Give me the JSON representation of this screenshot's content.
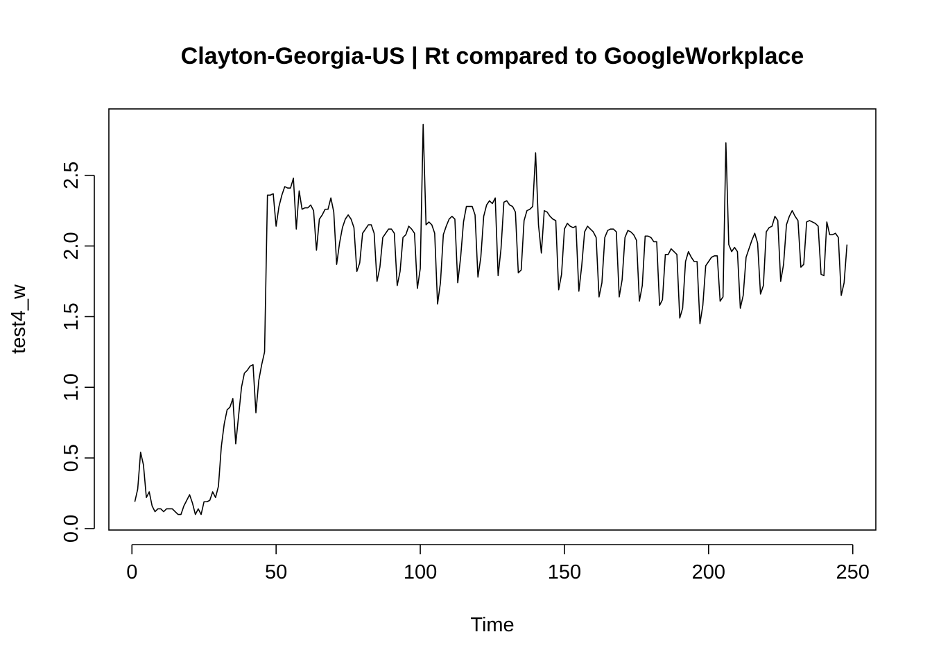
{
  "chart_data": {
    "type": "line",
    "title": "Clayton-Georgia-US | Rt compared to GoogleWorkplace",
    "xlabel": "Time",
    "ylabel": "test4_w",
    "xlim": [
      -8,
      258
    ],
    "ylim": [
      -0.01,
      2.97
    ],
    "x_ticks": [
      0,
      50,
      100,
      150,
      200,
      250
    ],
    "y_ticks": [
      0.0,
      0.5,
      1.0,
      1.5,
      2.0,
      2.5
    ],
    "x_tick_labels": [
      "0",
      "50",
      "100",
      "150",
      "200",
      "250"
    ],
    "y_tick_labels": [
      "0.0",
      "0.5",
      "1.0",
      "1.5",
      "2.0",
      "2.5"
    ],
    "grid": false,
    "legend": "none",
    "series": [
      {
        "x_start": 1,
        "x_step": 1,
        "values": [
          0.19,
          0.28,
          0.54,
          0.45,
          0.22,
          0.26,
          0.16,
          0.12,
          0.14,
          0.14,
          0.12,
          0.14,
          0.14,
          0.14,
          0.12,
          0.1,
          0.1,
          0.16,
          0.2,
          0.24,
          0.18,
          0.1,
          0.14,
          0.1,
          0.19,
          0.19,
          0.2,
          0.26,
          0.22,
          0.3,
          0.58,
          0.74,
          0.84,
          0.86,
          0.92,
          0.6,
          0.8,
          1.0,
          1.1,
          1.12,
          1.15,
          1.16,
          0.82,
          1.05,
          1.16,
          1.25,
          2.36,
          2.36,
          2.37,
          2.14,
          2.28,
          2.36,
          2.42,
          2.41,
          2.41,
          2.48,
          2.12,
          2.39,
          2.26,
          2.27,
          2.27,
          2.29,
          2.25,
          1.97,
          2.19,
          2.22,
          2.26,
          2.26,
          2.34,
          2.24,
          1.87,
          2.02,
          2.13,
          2.19,
          2.22,
          2.19,
          2.13,
          1.82,
          1.88,
          2.09,
          2.12,
          2.15,
          2.15,
          2.09,
          1.75,
          1.85,
          2.06,
          2.09,
          2.12,
          2.12,
          2.09,
          1.72,
          1.82,
          2.06,
          2.08,
          2.14,
          2.12,
          2.09,
          1.7,
          1.84,
          2.86,
          2.15,
          2.17,
          2.15,
          2.09,
          1.59,
          1.74,
          2.08,
          2.14,
          2.19,
          2.21,
          2.19,
          1.74,
          1.92,
          2.17,
          2.28,
          2.28,
          2.28,
          2.22,
          1.78,
          1.92,
          2.21,
          2.29,
          2.32,
          2.3,
          2.34,
          1.79,
          1.98,
          2.31,
          2.32,
          2.29,
          2.28,
          2.24,
          1.81,
          1.83,
          2.18,
          2.25,
          2.26,
          2.28,
          2.66,
          2.15,
          1.95,
          2.25,
          2.24,
          2.21,
          2.19,
          2.18,
          1.69,
          1.8,
          2.12,
          2.16,
          2.14,
          2.13,
          2.14,
          1.68,
          1.86,
          2.1,
          2.14,
          2.12,
          2.1,
          2.06,
          1.64,
          1.74,
          2.06,
          2.11,
          2.12,
          2.12,
          2.1,
          1.64,
          1.76,
          2.06,
          2.11,
          2.1,
          2.08,
          2.04,
          1.61,
          1.72,
          2.07,
          2.07,
          2.06,
          2.03,
          2.03,
          1.58,
          1.62,
          1.94,
          1.94,
          1.98,
          1.96,
          1.94,
          1.49,
          1.56,
          1.89,
          1.96,
          1.92,
          1.89,
          1.89,
          1.45,
          1.58,
          1.86,
          1.89,
          1.92,
          1.93,
          1.93,
          1.61,
          1.64,
          2.73,
          2.01,
          1.96,
          1.99,
          1.96,
          1.56,
          1.65,
          1.92,
          1.98,
          2.04,
          2.09,
          2.02,
          1.66,
          1.72,
          2.1,
          2.13,
          2.14,
          2.21,
          2.18,
          1.75,
          1.87,
          2.15,
          2.21,
          2.25,
          2.21,
          2.18,
          1.85,
          1.87,
          2.17,
          2.18,
          2.17,
          2.16,
          2.14,
          1.8,
          1.79,
          2.17,
          2.08,
          2.08,
          2.09,
          2.06,
          1.65,
          1.74,
          2.01
        ]
      }
    ]
  }
}
